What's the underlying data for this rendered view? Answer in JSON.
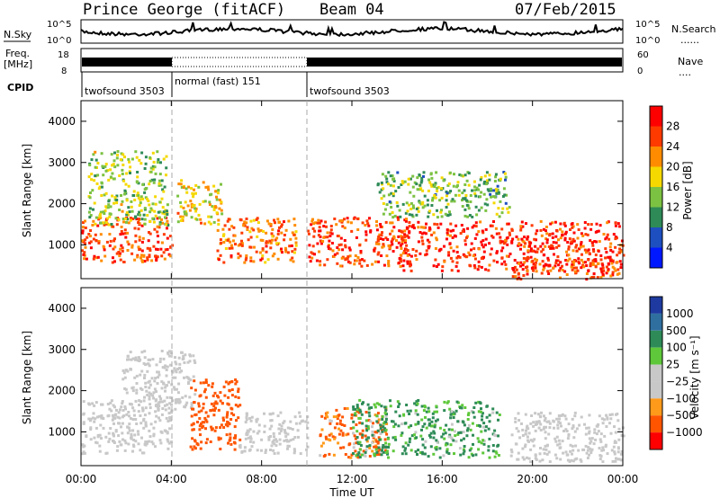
{
  "header": {
    "station": "Prince George (fitACF)",
    "beam": "Beam 04",
    "date": "07/Feb/2015"
  },
  "top_panels": {
    "nsky": {
      "label": "N.Sky",
      "ticks": [
        "10^5",
        "10^0"
      ]
    },
    "nsearch": {
      "label": "N.Search",
      "ticks": [
        "10^5",
        "10^0"
      ]
    },
    "freq": {
      "label_line1": "Freq.",
      "label_line2": "[MHz]",
      "ticks": [
        "18",
        "8"
      ]
    },
    "nave": {
      "label": "Nave",
      "ticks": [
        "60",
        "0"
      ]
    },
    "cpid": {
      "label": "CPID",
      "segments": [
        {
          "name": "twofsound 3503",
          "start": 0.0,
          "end": 4.0
        },
        {
          "name": "normal (fast) 151",
          "start": 4.0,
          "end": 10.0
        },
        {
          "name": "twofsound 3503",
          "start": 10.0,
          "end": 24.0
        }
      ]
    }
  },
  "x_axis": {
    "label": "Time UT",
    "ticks": [
      "00:00",
      "04:00",
      "08:00",
      "12:00",
      "16:00",
      "20:00",
      "00:00"
    ]
  },
  "colors": {
    "power_scale": [
      "#0018ff",
      "#1e4fc0",
      "#2e8b57",
      "#7cc242",
      "#f5d800",
      "#ff8c00",
      "#ff3a00",
      "#ff0000"
    ],
    "velocity_scale": [
      "#1e3aa0",
      "#2f6fa0",
      "#2e8b57",
      "#5ec83a",
      "#c8c8c8",
      "#c8c8c8",
      "#ff9a1a",
      "#ff5500",
      "#ff0000"
    ],
    "ground_scatter": "#c8c8c8"
  },
  "chart_data": [
    {
      "type": "heatmap",
      "name": "power",
      "ylabel": "Slant Range [km]",
      "ylim": [
        180,
        4500
      ],
      "xlim_hours": [
        0,
        24
      ],
      "y_ticks": [
        1000,
        2000,
        3000,
        4000
      ],
      "colorbar": {
        "label": "Power [dB]",
        "ticks": [
          "4",
          "8",
          "12",
          "16",
          "20",
          "24",
          "28"
        ],
        "range": [
          0,
          30
        ]
      },
      "regions": [
        {
          "t0": 0.0,
          "t1": 4.0,
          "r0": 600,
          "r1": 1700,
          "value": 24
        },
        {
          "t0": 0.3,
          "t1": 3.8,
          "r0": 1500,
          "r1": 3300,
          "value": 14
        },
        {
          "t0": 4.2,
          "t1": 6.2,
          "r0": 1500,
          "r1": 2600,
          "value": 18
        },
        {
          "t0": 6.0,
          "t1": 9.5,
          "r0": 600,
          "r1": 1700,
          "value": 22
        },
        {
          "t0": 10.0,
          "t1": 14.5,
          "r0": 500,
          "r1": 1700,
          "value": 25
        },
        {
          "t0": 14.0,
          "t1": 24.0,
          "r0": 400,
          "r1": 1600,
          "value": 26
        },
        {
          "t0": 13.0,
          "t1": 19.0,
          "r0": 1700,
          "r1": 2800,
          "value": 12
        },
        {
          "t0": 19.0,
          "t1": 24.0,
          "r0": 200,
          "r1": 700,
          "value": 24
        }
      ]
    },
    {
      "type": "heatmap",
      "name": "velocity",
      "ylabel": "Slant Range [km]",
      "ylim": [
        180,
        4500
      ],
      "xlim_hours": [
        0,
        24
      ],
      "y_ticks": [
        1000,
        2000,
        3000,
        4000
      ],
      "colorbar": {
        "label": "Velocity [m s⁻¹]",
        "ticks": [
          "1000",
          "500",
          "100",
          "25",
          "−25",
          "−100",
          "−500",
          "−1000"
        ]
      },
      "regions": [
        {
          "t0": 0.0,
          "t1": 4.0,
          "r0": 500,
          "r1": 1800,
          "kind": "ground"
        },
        {
          "t0": 1.8,
          "t1": 5.0,
          "r0": 1500,
          "r1": 3000,
          "kind": "ground"
        },
        {
          "t0": 4.8,
          "t1": 7.0,
          "r0": 600,
          "r1": 2300,
          "value": -300
        },
        {
          "t0": 7.0,
          "t1": 10.0,
          "r0": 500,
          "r1": 1500,
          "kind": "ground"
        },
        {
          "t0": 10.5,
          "t1": 13.5,
          "r0": 400,
          "r1": 1600,
          "value": -150
        },
        {
          "t0": 12.0,
          "t1": 18.5,
          "r0": 400,
          "r1": 1800,
          "value": 150
        },
        {
          "t0": 19.0,
          "t1": 24.0,
          "r0": 300,
          "r1": 1500,
          "kind": "ground"
        }
      ]
    }
  ]
}
